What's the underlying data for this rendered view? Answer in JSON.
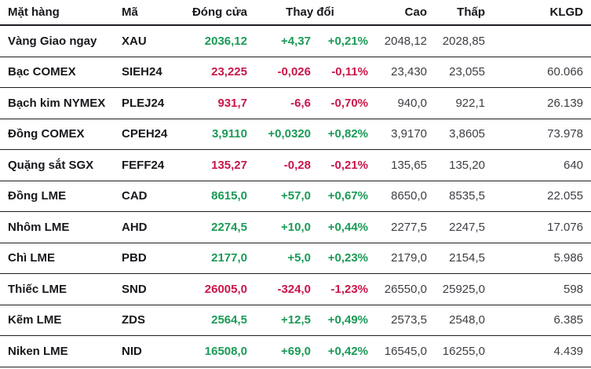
{
  "colors": {
    "up": "#1b9a57",
    "down": "#c9164a",
    "text_dark": "#17181c",
    "text_muted": "#3d3e44",
    "border": "#1b1d22"
  },
  "header": {
    "item": "Mặt hàng",
    "code": "Mã",
    "close": "Đóng cửa",
    "change": "Thay đổi",
    "high": "Cao",
    "low": "Thấp",
    "volume": "KLGD"
  },
  "rows": [
    {
      "item": "Vàng Giao ngay",
      "code": "XAU",
      "close": "2036,12",
      "change": "+4,37",
      "change_pct": "+0,21%",
      "high": "2048,12",
      "low": "2028,85",
      "volume": "",
      "direction": "up"
    },
    {
      "item": "Bạc COMEX",
      "code": "SIEH24",
      "close": "23,225",
      "change": "-0,026",
      "change_pct": "-0,11%",
      "high": "23,430",
      "low": "23,055",
      "volume": "60.066",
      "direction": "down"
    },
    {
      "item": "Bạch kim NYMEX",
      "code": "PLEJ24",
      "close": "931,7",
      "change": "-6,6",
      "change_pct": "-0,70%",
      "high": "940,0",
      "low": "922,1",
      "volume": "26.139",
      "direction": "down"
    },
    {
      "item": "Đồng COMEX",
      "code": "CPEH24",
      "close": "3,9110",
      "change": "+0,0320",
      "change_pct": "+0,82%",
      "high": "3,9170",
      "low": "3,8605",
      "volume": "73.978",
      "direction": "up"
    },
    {
      "item": "Quặng sắt SGX",
      "code": "FEFF24",
      "close": "135,27",
      "change": "-0,28",
      "change_pct": "-0,21%",
      "high": "135,65",
      "low": "135,20",
      "volume": "640",
      "direction": "down"
    },
    {
      "item": "Đồng LME",
      "code": "CAD",
      "close": "8615,0",
      "change": "+57,0",
      "change_pct": "+0,67%",
      "high": "8650,0",
      "low": "8535,5",
      "volume": "22.055",
      "direction": "up"
    },
    {
      "item": "Nhôm LME",
      "code": "AHD",
      "close": "2274,5",
      "change": "+10,0",
      "change_pct": "+0,44%",
      "high": "2277,5",
      "low": "2247,5",
      "volume": "17.076",
      "direction": "up"
    },
    {
      "item": "Chì LME",
      "code": "PBD",
      "close": "2177,0",
      "change": "+5,0",
      "change_pct": "+0,23%",
      "high": "2179,0",
      "low": "2154,5",
      "volume": "5.986",
      "direction": "up"
    },
    {
      "item": "Thiếc LME",
      "code": "SND",
      "close": "26005,0",
      "change": "-324,0",
      "change_pct": "-1,23%",
      "high": "26550,0",
      "low": "25925,0",
      "volume": "598",
      "direction": "down"
    },
    {
      "item": "Kẽm LME",
      "code": "ZDS",
      "close": "2564,5",
      "change": "+12,5",
      "change_pct": "+0,49%",
      "high": "2573,5",
      "low": "2548,0",
      "volume": "6.385",
      "direction": "up"
    },
    {
      "item": "Niken LME",
      "code": "NID",
      "close": "16508,0",
      "change": "+69,0",
      "change_pct": "+0,42%",
      "high": "16545,0",
      "low": "16255,0",
      "volume": "4.439",
      "direction": "up"
    }
  ]
}
